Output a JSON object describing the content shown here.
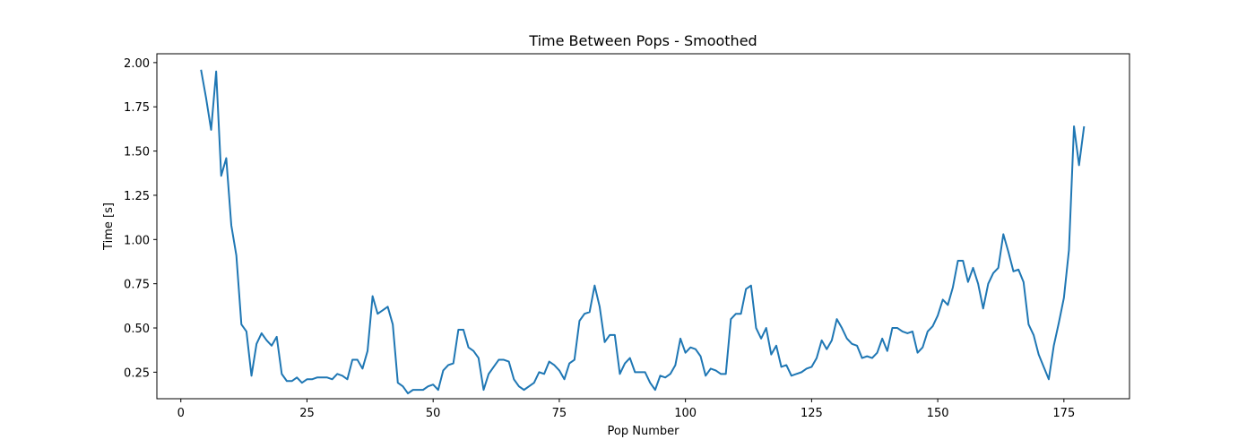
{
  "chart_data": {
    "type": "line",
    "title": "Time Between Pops - Smoothed",
    "xlabel": "Pop Number",
    "ylabel": "Time [s]",
    "xlim": [
      -4.75,
      188.0
    ],
    "ylim": [
      0.1,
      2.05
    ],
    "xticks": [
      0,
      25,
      50,
      75,
      100,
      125,
      150,
      175
    ],
    "yticks": [
      0.25,
      0.5,
      0.75,
      1.0,
      1.25,
      1.5,
      1.75,
      2.0
    ],
    "ytick_format": "2dp",
    "grid": false,
    "series": [
      {
        "color": "#1f77b4",
        "x": [
          4,
          5,
          6,
          7,
          8,
          9,
          10,
          11,
          12,
          13,
          14,
          15,
          16,
          17,
          18,
          19,
          20,
          21,
          22,
          23,
          24,
          25,
          26,
          27,
          28,
          29,
          30,
          31,
          32,
          33,
          34,
          35,
          36,
          37,
          38,
          39,
          40,
          41,
          42,
          43,
          44,
          45,
          46,
          47,
          48,
          49,
          50,
          51,
          52,
          53,
          54,
          55,
          56,
          57,
          58,
          59,
          60,
          61,
          62,
          63,
          64,
          65,
          66,
          67,
          68,
          69,
          70,
          71,
          72,
          73,
          74,
          75,
          76,
          77,
          78,
          79,
          80,
          81,
          82,
          83,
          84,
          85,
          86,
          87,
          88,
          89,
          90,
          91,
          92,
          93,
          94,
          95,
          96,
          97,
          98,
          99,
          100,
          101,
          102,
          103,
          104,
          105,
          106,
          107,
          108,
          109,
          110,
          111,
          112,
          113,
          114,
          115,
          116,
          117,
          118,
          119,
          120,
          121,
          122,
          123,
          124,
          125,
          126,
          127,
          128,
          129,
          130,
          131,
          132,
          133,
          134,
          135,
          136,
          137,
          138,
          139,
          140,
          141,
          142,
          143,
          144,
          145,
          146,
          147,
          148,
          149,
          150,
          151,
          152,
          153,
          154,
          155,
          156,
          157,
          158,
          159,
          160,
          161,
          162,
          163,
          164,
          165,
          166,
          167,
          168,
          169,
          170,
          171,
          172,
          173,
          174,
          175,
          176,
          177,
          178,
          179
        ],
        "y": [
          1.96,
          1.8,
          1.62,
          1.95,
          1.36,
          1.46,
          1.08,
          0.91,
          0.52,
          0.48,
          0.23,
          0.41,
          0.47,
          0.43,
          0.4,
          0.45,
          0.24,
          0.2,
          0.2,
          0.22,
          0.19,
          0.21,
          0.21,
          0.22,
          0.22,
          0.22,
          0.21,
          0.24,
          0.23,
          0.21,
          0.32,
          0.32,
          0.27,
          0.37,
          0.68,
          0.58,
          0.6,
          0.62,
          0.52,
          0.19,
          0.17,
          0.13,
          0.15,
          0.15,
          0.15,
          0.17,
          0.18,
          0.15,
          0.26,
          0.29,
          0.3,
          0.49,
          0.49,
          0.39,
          0.37,
          0.33,
          0.15,
          0.24,
          0.28,
          0.32,
          0.32,
          0.31,
          0.21,
          0.17,
          0.15,
          0.17,
          0.19,
          0.25,
          0.24,
          0.31,
          0.29,
          0.26,
          0.21,
          0.3,
          0.32,
          0.54,
          0.58,
          0.59,
          0.74,
          0.62,
          0.42,
          0.46,
          0.46,
          0.24,
          0.3,
          0.33,
          0.25,
          0.25,
          0.25,
          0.19,
          0.15,
          0.23,
          0.22,
          0.24,
          0.29,
          0.44,
          0.36,
          0.39,
          0.38,
          0.34,
          0.23,
          0.27,
          0.26,
          0.24,
          0.24,
          0.55,
          0.58,
          0.58,
          0.72,
          0.74,
          0.5,
          0.44,
          0.5,
          0.35,
          0.4,
          0.28,
          0.29,
          0.23,
          0.24,
          0.25,
          0.27,
          0.28,
          0.33,
          0.43,
          0.38,
          0.43,
          0.55,
          0.5,
          0.44,
          0.41,
          0.4,
          0.33,
          0.34,
          0.33,
          0.36,
          0.44,
          0.37,
          0.5,
          0.5,
          0.48,
          0.47,
          0.48,
          0.36,
          0.39,
          0.48,
          0.51,
          0.57,
          0.66,
          0.63,
          0.73,
          0.88,
          0.88,
          0.76,
          0.84,
          0.75,
          0.61,
          0.75,
          0.81,
          0.84,
          1.03,
          0.93,
          0.82,
          0.83,
          0.76,
          0.52,
          0.46,
          0.35,
          0.28,
          0.21,
          0.4,
          0.53,
          0.67,
          0.94,
          1.64,
          1.42,
          1.64
        ]
      }
    ]
  }
}
